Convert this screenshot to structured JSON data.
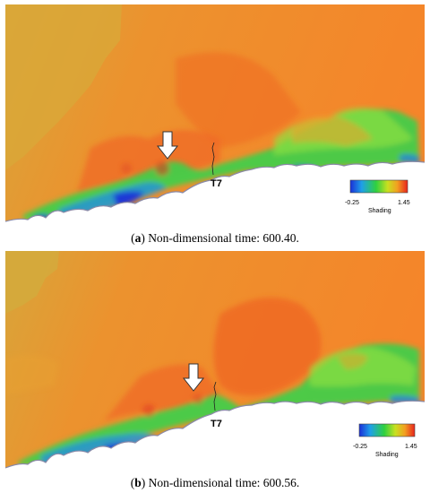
{
  "panels": [
    {
      "caption_letter": "a",
      "caption_text": "Non-dimensional time: 600.40.",
      "probe_label": "T7",
      "colorbar": {
        "min_label": "-0.25",
        "max_label": "1.45",
        "title": "Shading"
      }
    },
    {
      "caption_letter": "b",
      "caption_text": "Non-dimensional time: 600.56.",
      "probe_label": "T7",
      "colorbar": {
        "min_label": "-0.25",
        "max_label": "1.45",
        "title": "Shading"
      }
    }
  ],
  "colors": {
    "background_field": "#f28a2a",
    "upper_left": "#d6a535",
    "low_velocity": "#1f4fd6",
    "mid_velocity": "#2fd04a",
    "high_velocity": "#ee3a1e",
    "terrain": "#ffffff"
  }
}
